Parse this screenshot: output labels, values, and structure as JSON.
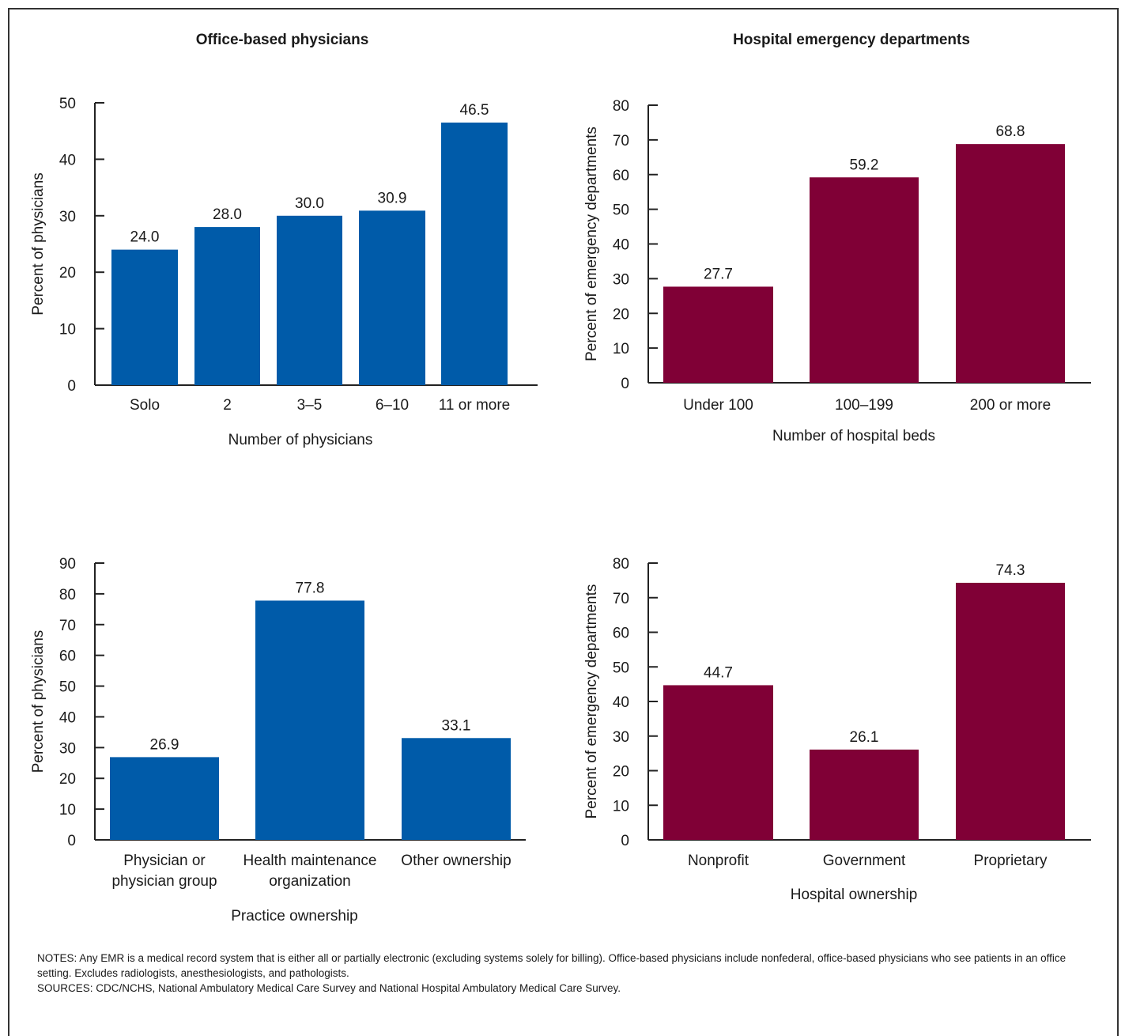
{
  "titles": {
    "left": "Office-based physicians",
    "right": "Hospital emergency departments"
  },
  "colors": {
    "blue": "#005ba9",
    "maroon": "#800036"
  },
  "notes": {
    "notes_text": "NOTES: Any EMR is a medical record system that is either all or partially electronic (excluding systems solely for billing). Office-based physicians include nonfederal, office-based physicians who see patients in an office setting. Excludes radiologists, anesthesiologists, and pathologists.",
    "sources_text": "SOURCES: CDC/NCHS, National Ambulatory Medical Care Survey and National Hospital Ambulatory Medical Care Survey."
  },
  "chart_data": [
    {
      "type": "bar",
      "categories": [
        "Solo",
        "2",
        "3–5",
        "6–10",
        "11 or more"
      ],
      "values": [
        24.0,
        28.0,
        30.0,
        30.9,
        46.5
      ],
      "value_labels": [
        "24.0",
        "28.0",
        "30.0",
        "30.9",
        "46.5"
      ],
      "xlabel": "Number of physicians",
      "ylabel": "Percent of physicians",
      "ylim": [
        0,
        50
      ],
      "yticks": [
        0,
        10,
        20,
        30,
        40,
        50
      ],
      "color": "#005ba9"
    },
    {
      "type": "bar",
      "categories": [
        "Under 100",
        "100–199",
        "200 or more"
      ],
      "values": [
        27.7,
        59.2,
        68.8
      ],
      "value_labels": [
        "27.7",
        "59.2",
        "68.8"
      ],
      "xlabel": "Number of hospital beds",
      "ylabel": "Percent of emergency departments",
      "ylim": [
        0,
        80
      ],
      "yticks": [
        0,
        10,
        20,
        30,
        40,
        50,
        60,
        70,
        80
      ],
      "color": "#800036"
    },
    {
      "type": "bar",
      "categories": [
        "Physician or\nphysician group",
        "Health maintenance\norganization",
        "Other ownership"
      ],
      "values": [
        26.9,
        77.8,
        33.1
      ],
      "value_labels": [
        "26.9",
        "77.8",
        "33.1"
      ],
      "xlabel": "Practice ownership",
      "ylabel": "Percent of physicians",
      "ylim": [
        0,
        90
      ],
      "yticks": [
        0,
        10,
        20,
        30,
        40,
        50,
        60,
        70,
        80,
        90
      ],
      "color": "#005ba9"
    },
    {
      "type": "bar",
      "categories": [
        "Nonprofit",
        "Government",
        "Proprietary"
      ],
      "values": [
        44.7,
        26.1,
        74.3
      ],
      "value_labels": [
        "44.7",
        "26.1",
        "74.3"
      ],
      "xlabel": "Hospital ownership",
      "ylabel": "Percent of emergency departments",
      "ylim": [
        0,
        80
      ],
      "yticks": [
        0,
        10,
        20,
        30,
        40,
        50,
        60,
        70,
        80
      ],
      "color": "#800036"
    }
  ]
}
